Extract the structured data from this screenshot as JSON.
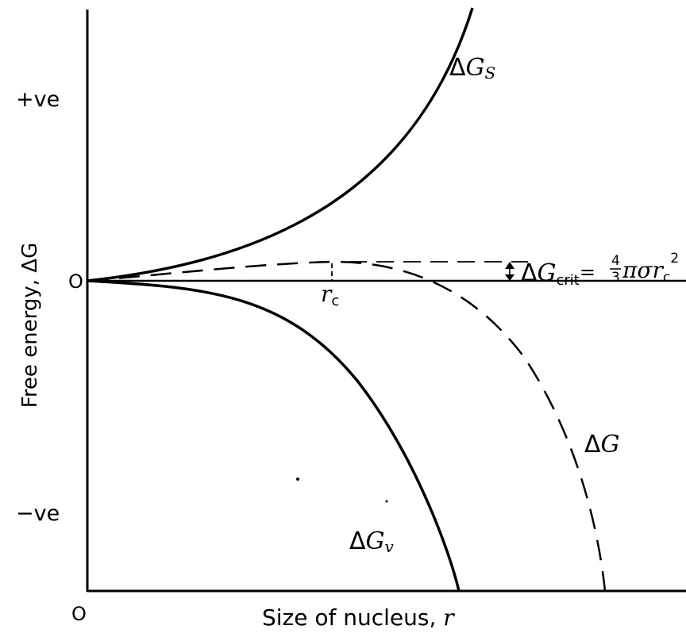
{
  "axes": {
    "y_label": "Free energy, ΔG",
    "x_label_prefix": "Size of nucleus, ",
    "x_label_var": "r",
    "y_tick_positive": "+ve",
    "y_tick_zero": "O",
    "y_tick_negative": "−ve",
    "x_origin": "O"
  },
  "curves": {
    "surface": {
      "symbol": "Δ",
      "letter": "G",
      "sub": "S"
    },
    "volume": {
      "symbol": "Δ",
      "letter": "G",
      "sub": "v"
    },
    "total": {
      "symbol": "Δ",
      "letter": "G"
    }
  },
  "critical": {
    "radius_letter": "r",
    "radius_sub": "c",
    "energy_symbol": "Δ",
    "energy_letter": "G",
    "energy_sub": "crit",
    "equals": "=",
    "frac_num": "4",
    "frac_den": "3",
    "formula_tail": "πσr",
    "formula_sub": "c",
    "formula_sup": "2"
  },
  "colors": {
    "ink": "#000000",
    "background": "#ffffff"
  }
}
